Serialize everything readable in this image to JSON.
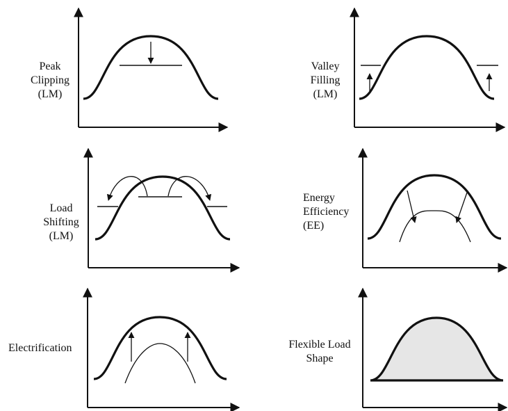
{
  "panels": [
    {
      "id": "peak",
      "label_lines": [
        "Peak",
        "Clipping",
        "(LM)"
      ]
    },
    {
      "id": "valley",
      "label_lines": [
        "Valley",
        "Filling",
        "(LM)"
      ]
    },
    {
      "id": "shift",
      "label_lines": [
        "Load",
        "Shifting",
        "(LM)"
      ]
    },
    {
      "id": "ee",
      "label_lines": [
        "Energy",
        "Efficiency",
        "(EE)"
      ]
    },
    {
      "id": "elec",
      "label_lines": [
        "Electrification"
      ]
    },
    {
      "id": "flex",
      "label_lines": [
        "Flexible Load",
        "Shape"
      ]
    }
  ],
  "colors": {
    "ink": "#111111",
    "fill": "#e6e6e6"
  }
}
